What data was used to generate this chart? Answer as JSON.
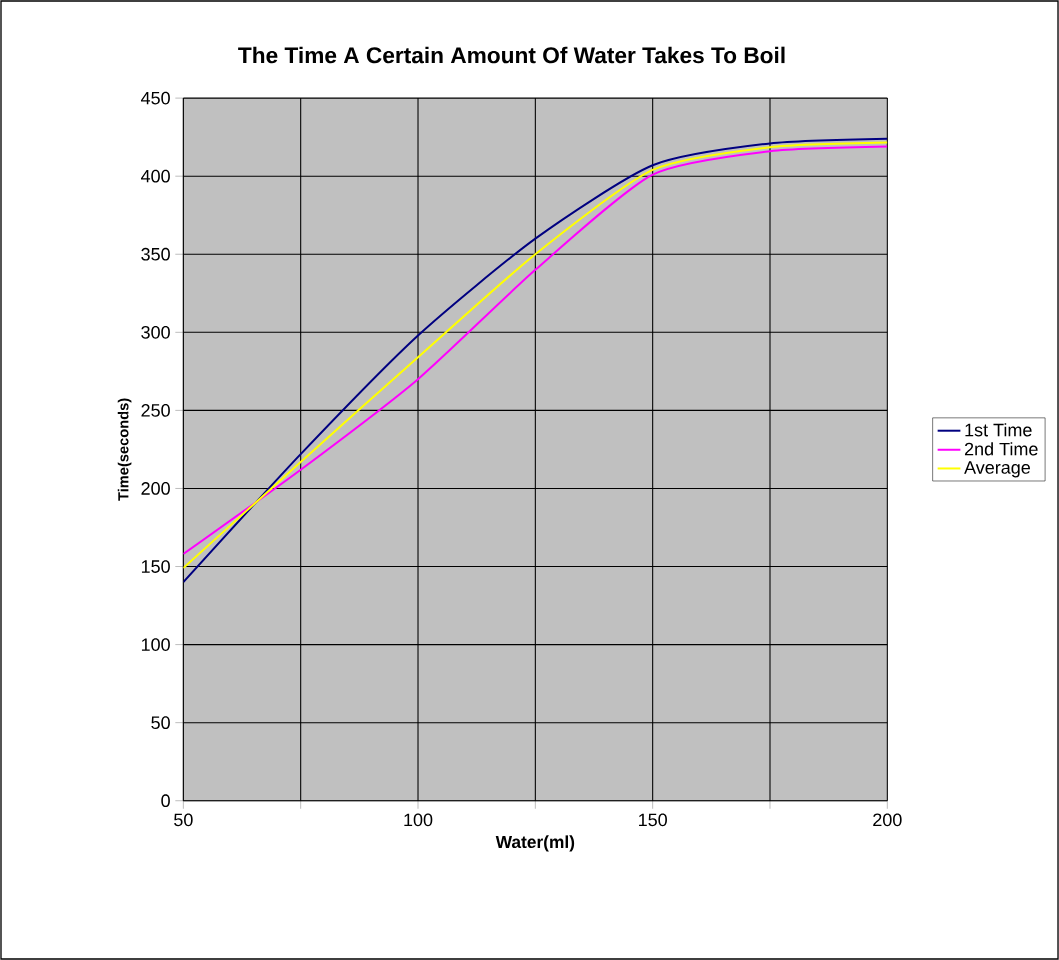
{
  "chart_data": {
    "type": "line",
    "title": "The Time A Certain Amount Of Water Takes To Boil",
    "xlabel": "Water(ml)",
    "ylabel": "Time(seconds)",
    "x": [
      50,
      75,
      100,
      125,
      150,
      175,
      200
    ],
    "series": [
      {
        "name": "1st Time",
        "color": "#000080",
        "values": [
          140,
          222,
          298,
          360,
          407,
          421,
          424
        ]
      },
      {
        "name": "2nd Time",
        "color": "#ff00ff",
        "values": [
          158,
          212,
          270,
          340,
          401,
          416,
          419
        ]
      },
      {
        "name": "Average",
        "color": "#ffff00",
        "values": [
          149,
          217,
          284,
          350,
          404,
          418.5,
          421.5
        ]
      }
    ],
    "xlim": [
      50,
      200
    ],
    "ylim": [
      0,
      450
    ],
    "xticks": [
      50,
      {
        "value": 75,
        "label": null
      },
      100,
      {
        "value": 125,
        "label": null
      },
      150,
      {
        "value": 175,
        "label": null
      },
      200
    ],
    "yticks": [
      0,
      50,
      100,
      150,
      200,
      250,
      300,
      350,
      400,
      450
    ],
    "grid": true,
    "legend": "right",
    "marker": "none",
    "line_style": "solid"
  }
}
